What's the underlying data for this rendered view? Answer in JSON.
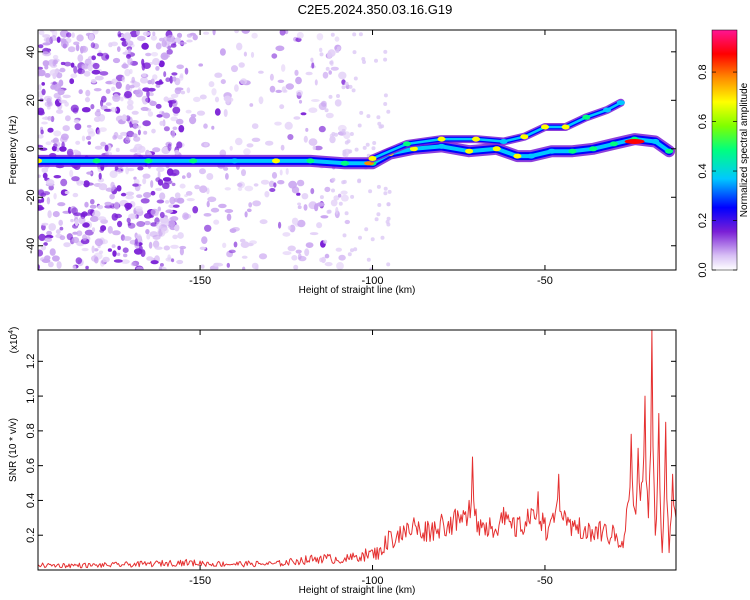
{
  "title": "C2E5.2024.350.03.16.G19",
  "colors": {
    "snr_line": "#e53030",
    "colormap": [
      "#ffffff",
      "#c9a4f0",
      "#7a1fd6",
      "#0000ff",
      "#00c8ff",
      "#00ff7f",
      "#7fff00",
      "#ffff00",
      "#ff8c00",
      "#ff0000",
      "#ff1493"
    ]
  },
  "chart_data": [
    {
      "type": "heatmap",
      "title": "C2E5.2024.350.03.16.G19",
      "xlabel": "Height of straight line (km)",
      "ylabel": "Frequency (Hz)",
      "xlim": [
        -197,
        -12
      ],
      "ylim": [
        -50,
        49
      ],
      "xticks": [
        -150,
        -100,
        -50
      ],
      "yticks": [
        40,
        20,
        0,
        -20,
        -40
      ],
      "colorbar": {
        "label": "Normalized spectral amplitude",
        "range": [
          0,
          0.97
        ],
        "ticks": [
          "0.0",
          "0.2",
          "0.4",
          "0.6",
          "0.8"
        ]
      },
      "ridges": [
        {
          "name": "",
          "x": [
            -197,
            -180,
            -165,
            -152,
            -140,
            -128,
            -118,
            -108,
            -100,
            -95,
            -88,
            -80,
            -72,
            -64,
            -58,
            -54,
            -48,
            -42,
            -36,
            -30,
            -24,
            -18,
            -14
          ],
          "y": [
            -5,
            -5,
            -5,
            -5,
            -5,
            -5,
            -5,
            -6,
            -6,
            -2,
            0,
            1,
            -1,
            0,
            -3,
            -3,
            -1,
            -1,
            0,
            2,
            4,
            3,
            -1
          ]
        },
        {
          "name": "",
          "x": [
            -100,
            -90,
            -80,
            -70,
            -62,
            -56,
            -50,
            -44,
            -38,
            -32,
            -28
          ],
          "y": [
            -4,
            2,
            4,
            4,
            3,
            5,
            9,
            9,
            13,
            16,
            19
          ]
        }
      ]
    },
    {
      "type": "line",
      "title": "",
      "xlabel": "Height of straight line (km)",
      "ylabel": "SNR (10 * v/v)",
      "ylabel_unit": "(x10",
      "ylabel_unit_exp": "4",
      "xlim": [
        -197,
        -12
      ],
      "ylim": [
        0,
        1.38
      ],
      "xticks": [
        -150,
        -100,
        -50
      ],
      "yticks": [
        0.2,
        0.4,
        0.6,
        0.8,
        1.0,
        1.2
      ],
      "series": [
        {
          "name": "",
          "x": [
            -197,
            -180,
            -165,
            -155,
            -145,
            -135,
            -128,
            -122,
            -115,
            -108,
            -103,
            -98,
            -95,
            -92,
            -88,
            -84,
            -80,
            -76,
            -72,
            -71,
            -70,
            -66,
            -62,
            -58,
            -55,
            -52,
            -50,
            -48,
            -46,
            -44,
            -42,
            -40,
            -37,
            -34,
            -30,
            -27,
            -25,
            -24,
            -23,
            -22,
            -21,
            -20,
            -19,
            -18,
            -17,
            -16,
            -15,
            -14,
            -13,
            -12
          ],
          "y": [
            0.03,
            0.03,
            0.04,
            0.05,
            0.04,
            0.04,
            0.04,
            0.06,
            0.08,
            0.07,
            0.1,
            0.12,
            0.22,
            0.25,
            0.3,
            0.28,
            0.32,
            0.35,
            0.4,
            0.65,
            0.35,
            0.3,
            0.36,
            0.3,
            0.35,
            0.45,
            0.3,
            0.3,
            0.55,
            0.32,
            0.28,
            0.3,
            0.25,
            0.28,
            0.24,
            0.2,
            0.78,
            0.35,
            0.7,
            0.5,
            1.0,
            0.3,
            1.38,
            0.2,
            0.9,
            0.1,
            0.85,
            0.1,
            0.55,
            0.3
          ]
        }
      ]
    }
  ]
}
